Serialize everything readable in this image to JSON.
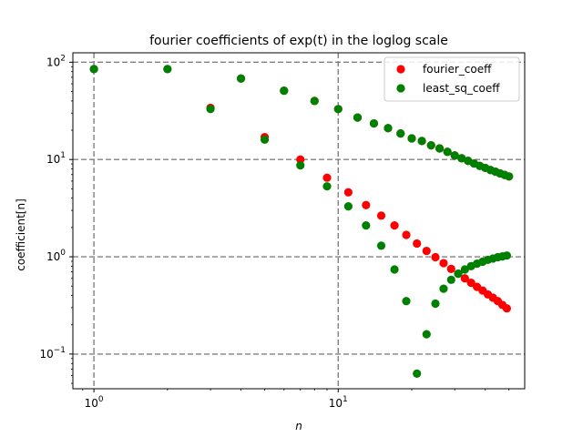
{
  "chart_data": {
    "type": "scatter",
    "title": "fourier coefficients of exp(t) in the loglog scale",
    "xlabel": "n",
    "ylabel": "coefficient[n]",
    "xscale": "log",
    "yscale": "log",
    "xlim": [
      0.82,
      58
    ],
    "ylim": [
      0.044,
      125
    ],
    "x_ticks": [
      {
        "value": 1,
        "base": "10",
        "exp": "0"
      },
      {
        "value": 10,
        "base": "10",
        "exp": "1"
      }
    ],
    "y_ticks": [
      {
        "value": 0.1,
        "base": "10",
        "exp": "−1"
      },
      {
        "value": 1,
        "base": "10",
        "exp": "0"
      },
      {
        "value": 10,
        "base": "10",
        "exp": "1"
      },
      {
        "value": 100,
        "base": "10",
        "exp": "2"
      }
    ],
    "grid": true,
    "legend_position": "top-right",
    "series": [
      {
        "name": "fourier_coeff",
        "color": "#ff0000",
        "x": [
          1,
          2,
          3,
          4,
          5,
          6,
          7,
          8,
          9,
          10,
          11,
          12,
          13,
          14,
          15,
          16,
          17,
          18,
          19,
          20,
          21,
          22,
          23,
          24,
          25,
          26,
          27,
          28,
          29,
          30,
          31,
          32,
          33,
          34,
          35,
          36,
          37,
          38,
          39,
          40,
          41,
          42,
          43,
          44,
          45,
          46,
          47,
          48,
          49,
          50
        ],
        "y": [
          85,
          85,
          34,
          68,
          17,
          51,
          10,
          40,
          6.5,
          33,
          4.6,
          27,
          3.4,
          23.5,
          2.65,
          21,
          2.1,
          18.5,
          1.68,
          16.5,
          1.37,
          15.5,
          1.15,
          14,
          0.99,
          13,
          0.86,
          12,
          0.75,
          11,
          0.67,
          10.3,
          0.6,
          9.7,
          0.54,
          9.1,
          0.49,
          8.6,
          0.45,
          8.2,
          0.41,
          7.8,
          0.38,
          7.5,
          0.35,
          7.2,
          0.32,
          6.95,
          0.295,
          6.7
        ]
      },
      {
        "name": "least_sq_coeff",
        "color": "#008000",
        "x": [
          1,
          2,
          3,
          4,
          5,
          6,
          7,
          8,
          9,
          10,
          11,
          12,
          13,
          14,
          15,
          16,
          17,
          18,
          19,
          20,
          21,
          22,
          23,
          24,
          25,
          26,
          27,
          28,
          29,
          30,
          31,
          32,
          33,
          34,
          35,
          36,
          37,
          38,
          39,
          40,
          41,
          42,
          43,
          44,
          45,
          46,
          47,
          48,
          49,
          50
        ],
        "y": [
          85,
          85,
          33,
          68,
          16,
          51,
          8.7,
          40,
          5.3,
          33,
          3.3,
          27,
          2.1,
          23.5,
          1.3,
          21,
          0.74,
          18.5,
          0.35,
          16.5,
          0.063,
          15.5,
          0.16,
          14,
          0.33,
          13,
          0.47,
          12,
          0.58,
          11,
          0.67,
          10.3,
          0.74,
          9.7,
          0.8,
          9.1,
          0.85,
          8.6,
          0.89,
          8.2,
          0.93,
          7.8,
          0.96,
          7.5,
          0.99,
          7.2,
          1.01,
          6.95,
          1.03,
          6.7
        ]
      }
    ]
  }
}
